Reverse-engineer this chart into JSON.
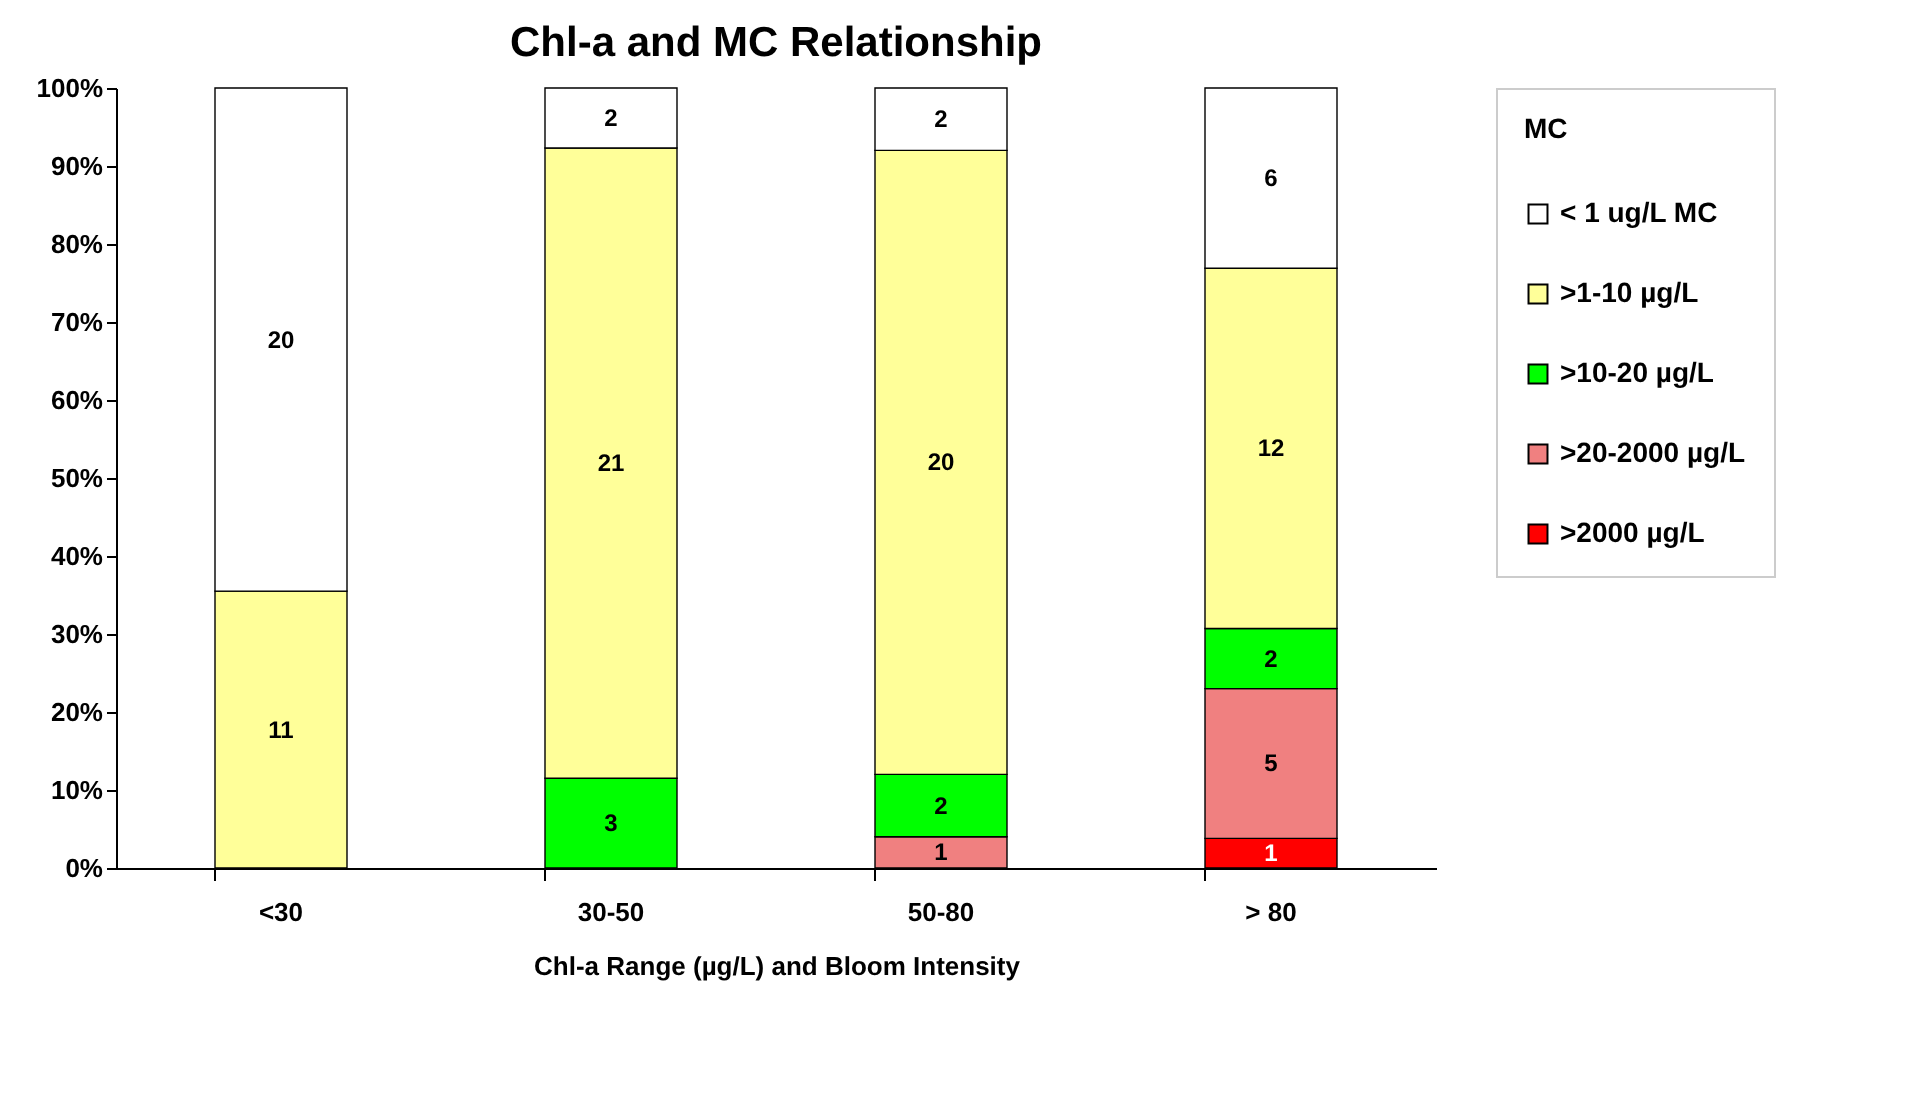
{
  "chart_data": {
    "type": "bar",
    "title": "Chl-a and MC Relationship",
    "xlabel": "Chl-a Range (µg/L) and Bloom Intensity",
    "legend_title": "MC",
    "stacked": true,
    "legend": "right",
    "grid": false,
    "categories": [
      "<30",
      "30-50",
      "50-80",
      "> 80"
    ],
    "ylim": [
      0,
      100
    ],
    "yticks": [
      {
        "value": 0,
        "label": "0%"
      },
      {
        "value": 10,
        "label": "10%"
      },
      {
        "value": 20,
        "label": "20%"
      },
      {
        "value": 30,
        "label": "30%"
      },
      {
        "value": 40,
        "label": "40%"
      },
      {
        "value": 50,
        "label": "50%"
      },
      {
        "value": 60,
        "label": "60%"
      },
      {
        "value": 70,
        "label": "70%"
      },
      {
        "value": 80,
        "label": "80%"
      },
      {
        "value": 90,
        "label": "90%"
      },
      {
        "value": 100,
        "label": "100%"
      }
    ],
    "series": [
      {
        "name": ">2000 µg/L",
        "color": "#ff0000",
        "values": [
          null,
          null,
          null,
          3.8
        ]
      },
      {
        "name": ">20-2000 µg/L",
        "color": "#f08080",
        "values": [
          null,
          null,
          4,
          19.2
        ]
      },
      {
        "name": ">10-20 µg/L",
        "color": "#00ff00",
        "values": [
          null,
          11.5,
          8,
          7.7
        ]
      },
      {
        "name": ">1-10 µg/L",
        "color": "#ffff99",
        "values": [
          35.5,
          80.8,
          80,
          46.2
        ]
      },
      {
        "name": "< 1 ug/L MC",
        "color": "#ffffff",
        "values": [
          64.5,
          7.7,
          8,
          23.1
        ]
      }
    ],
    "annotations": [
      "1",
      "1",
      "5",
      "3",
      "2",
      "2",
      "11",
      "21",
      "20",
      "12",
      "20",
      "2",
      "2",
      "6"
    ]
  }
}
